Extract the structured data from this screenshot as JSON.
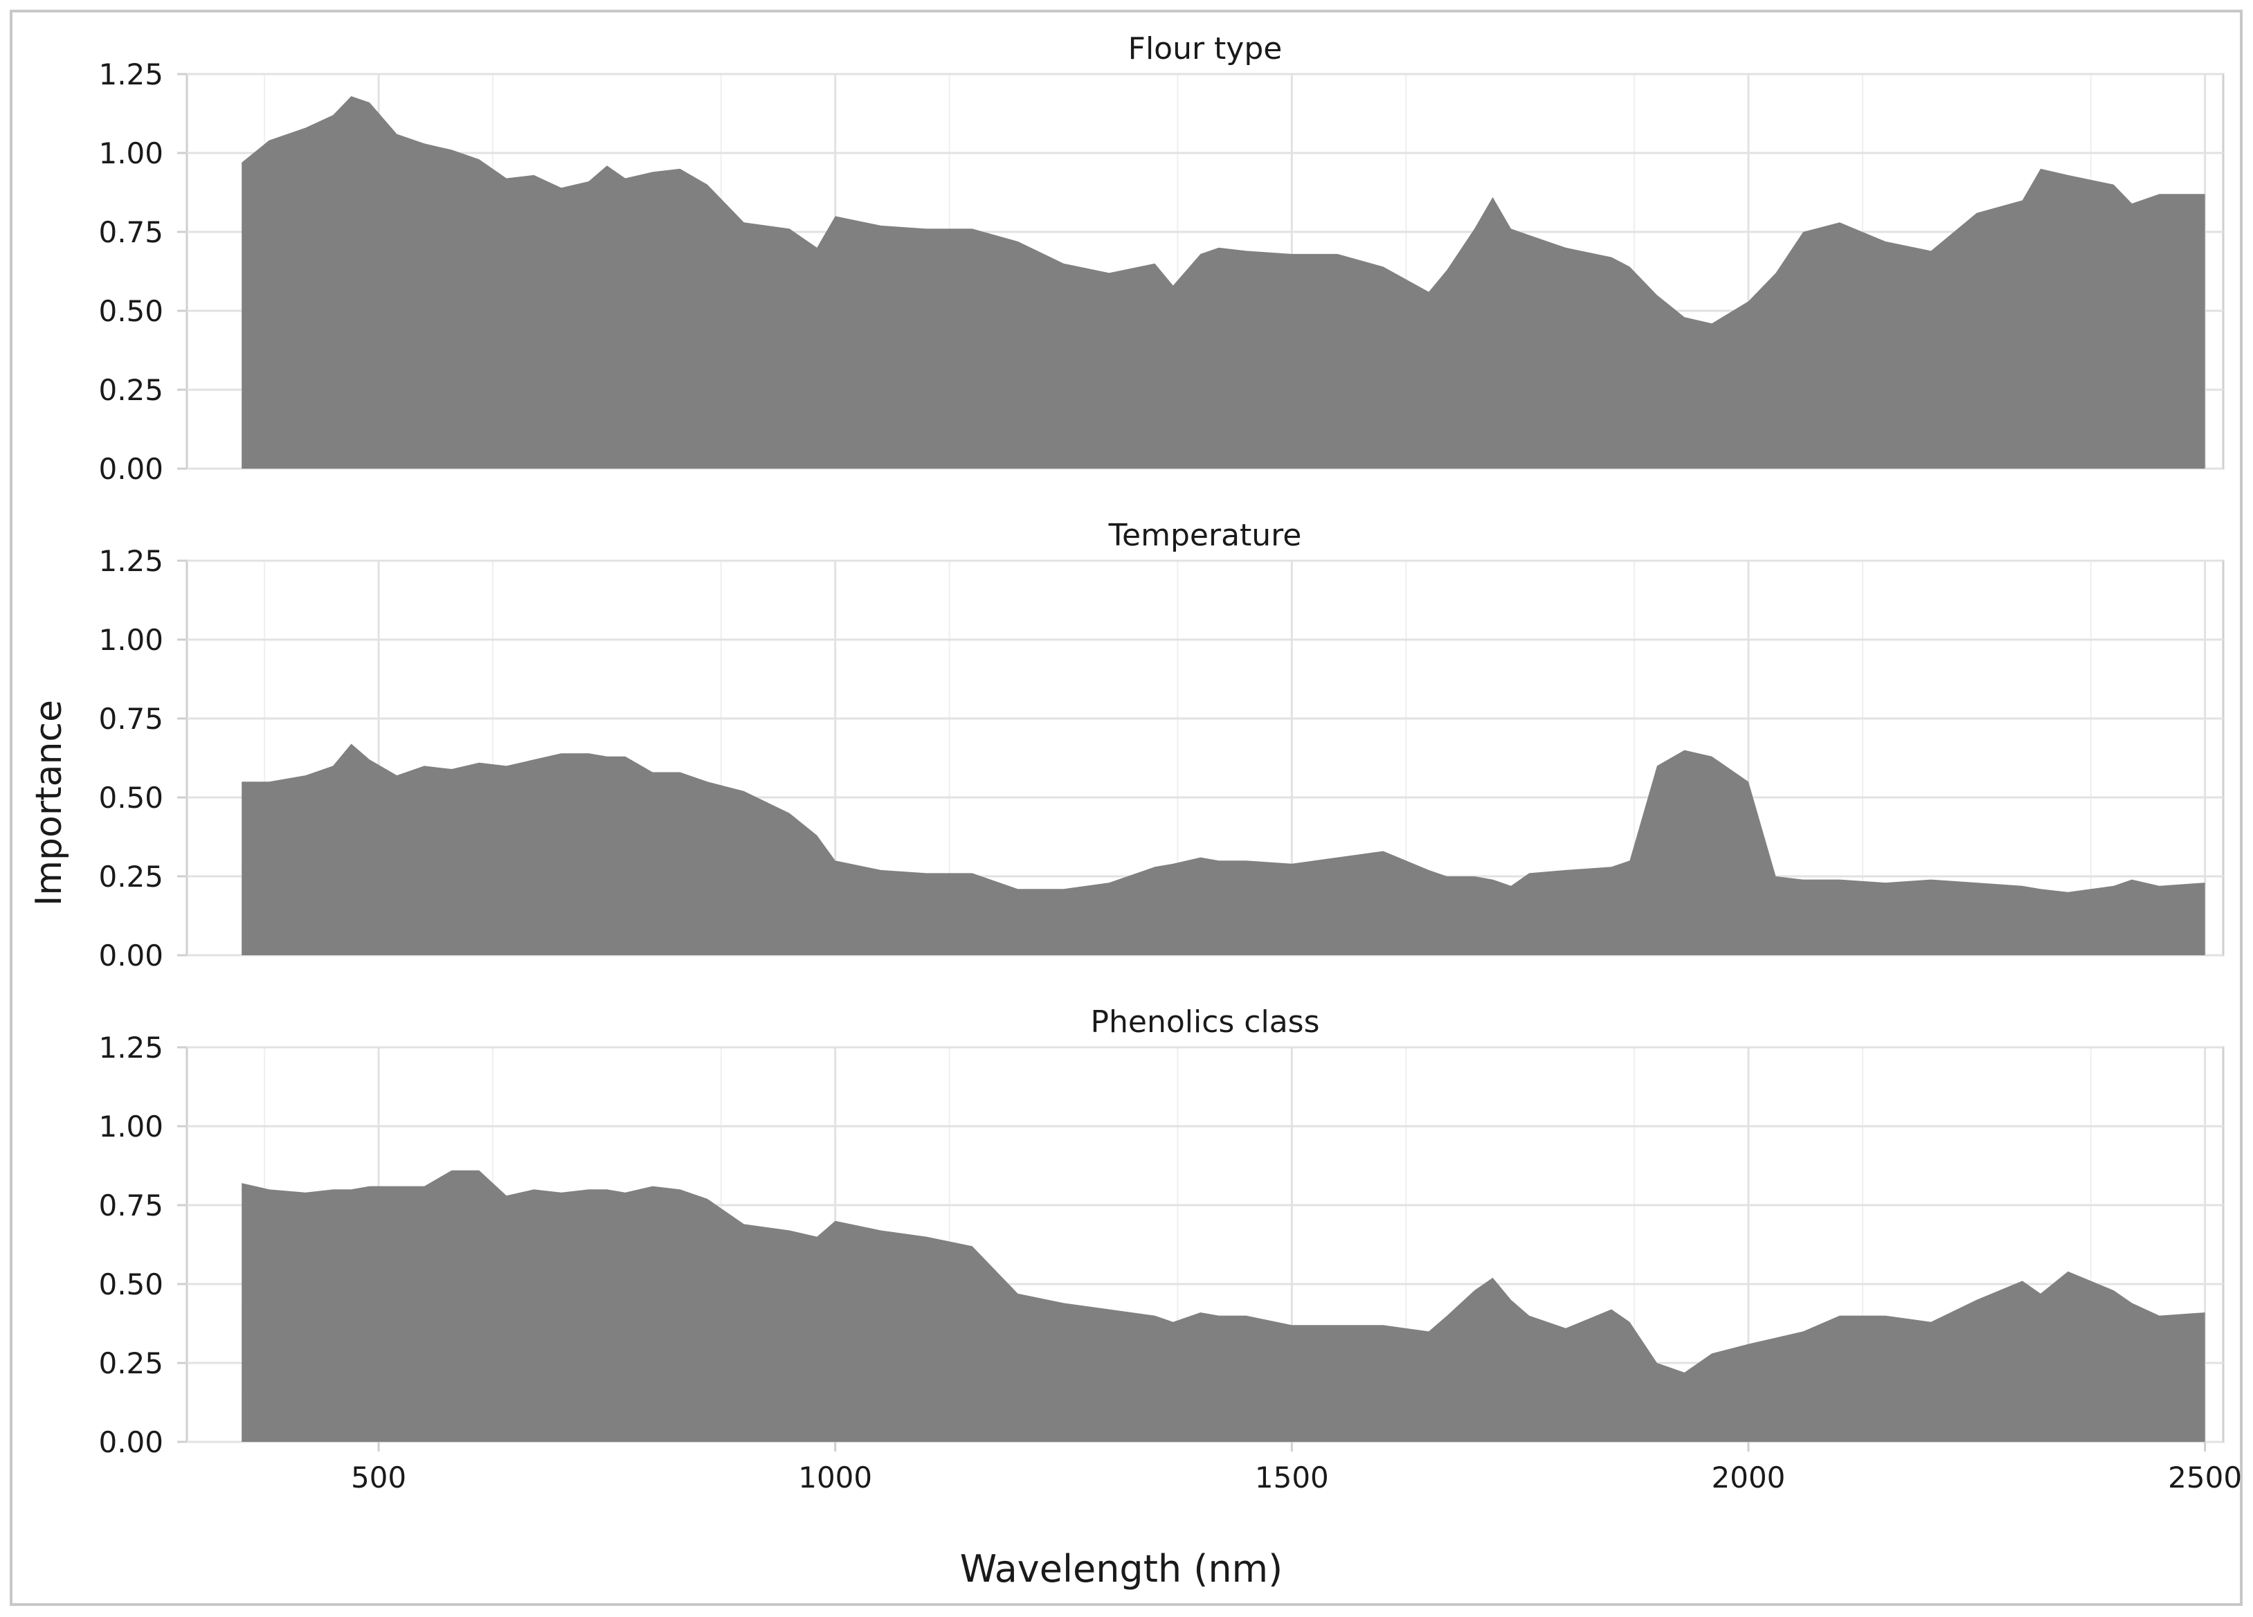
{
  "figure": {
    "ylabel": "Importance",
    "xlabel": "Wavelength (nm)"
  },
  "chart_data": {
    "type": "area",
    "xlabel": "Wavelength (nm)",
    "ylabel": "Importance",
    "xlim": [
      290,
      2520
    ],
    "ylim": [
      0,
      1.25
    ],
    "xticks": [
      500,
      1000,
      1500,
      2000,
      2500
    ],
    "yticks": [
      0.0,
      0.25,
      0.5,
      0.75,
      1.0,
      1.25
    ],
    "ytick_labels": [
      "0.00",
      "0.25",
      "0.50",
      "0.75",
      "1.00",
      "1.25"
    ],
    "grid": true,
    "fill_color": "#808080",
    "panels": [
      {
        "title": "Flour type",
        "x": [
          350,
          380,
          420,
          450,
          470,
          490,
          520,
          550,
          580,
          610,
          640,
          670,
          700,
          730,
          750,
          770,
          800,
          830,
          860,
          900,
          950,
          980,
          1000,
          1050,
          1100,
          1150,
          1200,
          1250,
          1300,
          1350,
          1370,
          1400,
          1420,
          1450,
          1500,
          1550,
          1600,
          1650,
          1670,
          1700,
          1720,
          1740,
          1760,
          1800,
          1850,
          1870,
          1900,
          1930,
          1960,
          2000,
          2030,
          2060,
          2100,
          2150,
          2200,
          2250,
          2300,
          2320,
          2350,
          2400,
          2420,
          2450,
          2500
        ],
        "values": [
          0.97,
          1.04,
          1.08,
          1.12,
          1.18,
          1.16,
          1.06,
          1.03,
          1.01,
          0.98,
          0.92,
          0.93,
          0.89,
          0.91,
          0.96,
          0.92,
          0.94,
          0.95,
          0.9,
          0.78,
          0.76,
          0.7,
          0.8,
          0.77,
          0.76,
          0.76,
          0.72,
          0.65,
          0.62,
          0.65,
          0.58,
          0.68,
          0.7,
          0.69,
          0.68,
          0.68,
          0.64,
          0.56,
          0.63,
          0.76,
          0.86,
          0.76,
          0.74,
          0.7,
          0.67,
          0.64,
          0.55,
          0.48,
          0.46,
          0.53,
          0.62,
          0.75,
          0.78,
          0.72,
          0.69,
          0.81,
          0.85,
          0.95,
          0.93,
          0.9,
          0.84,
          0.87,
          0.87
        ]
      },
      {
        "title": "Temperature",
        "x": [
          350,
          380,
          420,
          450,
          470,
          490,
          520,
          550,
          580,
          610,
          640,
          670,
          700,
          730,
          750,
          770,
          800,
          830,
          860,
          900,
          950,
          980,
          1000,
          1050,
          1100,
          1150,
          1200,
          1250,
          1300,
          1350,
          1370,
          1400,
          1420,
          1450,
          1500,
          1550,
          1600,
          1650,
          1670,
          1700,
          1720,
          1740,
          1760,
          1800,
          1850,
          1870,
          1900,
          1930,
          1960,
          2000,
          2030,
          2060,
          2100,
          2150,
          2200,
          2250,
          2300,
          2320,
          2350,
          2400,
          2420,
          2450,
          2500
        ],
        "values": [
          0.55,
          0.55,
          0.57,
          0.6,
          0.67,
          0.62,
          0.57,
          0.6,
          0.59,
          0.61,
          0.6,
          0.62,
          0.64,
          0.64,
          0.63,
          0.63,
          0.58,
          0.58,
          0.55,
          0.52,
          0.45,
          0.38,
          0.3,
          0.27,
          0.26,
          0.26,
          0.21,
          0.21,
          0.23,
          0.28,
          0.29,
          0.31,
          0.3,
          0.3,
          0.29,
          0.31,
          0.33,
          0.27,
          0.25,
          0.25,
          0.24,
          0.22,
          0.26,
          0.27,
          0.28,
          0.3,
          0.6,
          0.65,
          0.63,
          0.55,
          0.25,
          0.24,
          0.24,
          0.23,
          0.24,
          0.23,
          0.22,
          0.21,
          0.2,
          0.22,
          0.24,
          0.22,
          0.23
        ]
      },
      {
        "title": "Phenolics class",
        "x": [
          350,
          380,
          420,
          450,
          470,
          490,
          520,
          550,
          580,
          610,
          640,
          670,
          700,
          730,
          750,
          770,
          800,
          830,
          860,
          900,
          950,
          980,
          1000,
          1050,
          1100,
          1150,
          1200,
          1250,
          1300,
          1350,
          1370,
          1400,
          1420,
          1450,
          1500,
          1550,
          1600,
          1650,
          1670,
          1700,
          1720,
          1740,
          1760,
          1800,
          1850,
          1870,
          1900,
          1930,
          1960,
          2000,
          2030,
          2060,
          2100,
          2150,
          2200,
          2250,
          2300,
          2320,
          2350,
          2400,
          2420,
          2450,
          2500
        ],
        "values": [
          0.82,
          0.8,
          0.79,
          0.8,
          0.8,
          0.81,
          0.81,
          0.81,
          0.86,
          0.86,
          0.78,
          0.8,
          0.79,
          0.8,
          0.8,
          0.79,
          0.81,
          0.8,
          0.77,
          0.69,
          0.67,
          0.65,
          0.7,
          0.67,
          0.65,
          0.62,
          0.47,
          0.44,
          0.42,
          0.4,
          0.38,
          0.41,
          0.4,
          0.4,
          0.37,
          0.37,
          0.37,
          0.35,
          0.4,
          0.48,
          0.52,
          0.45,
          0.4,
          0.36,
          0.42,
          0.38,
          0.25,
          0.22,
          0.28,
          0.31,
          0.33,
          0.35,
          0.4,
          0.4,
          0.38,
          0.45,
          0.51,
          0.47,
          0.54,
          0.48,
          0.44,
          0.4,
          0.41
        ]
      }
    ]
  }
}
